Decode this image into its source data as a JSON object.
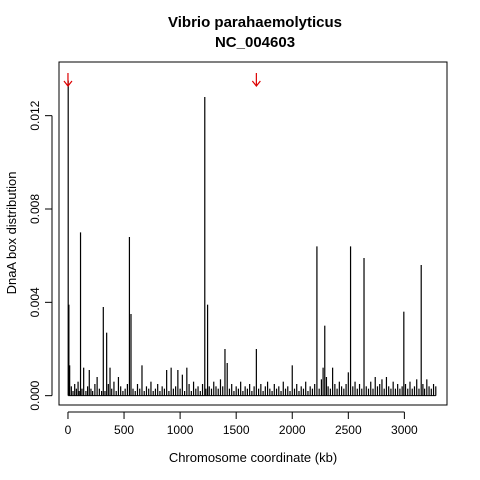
{
  "chart_data": {
    "type": "bar",
    "title": "Vibrio parahaemolyticus",
    "subtitle": "NC_004603",
    "xlabel": "Chromosome coordinate (kb)",
    "ylabel": "DnaA box distribution",
    "xlim": [
      -80,
      3380
    ],
    "ylim": [
      -0.0004,
      0.0143
    ],
    "xticks": [
      0,
      500,
      1000,
      1500,
      2000,
      2500,
      3000
    ],
    "xtick_labels": [
      "0",
      "500",
      "1000",
      "1500",
      "2000",
      "2500",
      "3000"
    ],
    "yticks": [
      0.0,
      0.004,
      0.008,
      0.012
    ],
    "ytick_labels": [
      "0.000",
      "0.004",
      "0.008",
      "0.012"
    ],
    "grid": false,
    "bar_color": "#000000",
    "marker_color": "#dd0000",
    "markers": [
      {
        "x": 0,
        "symbol": "down-arrow"
      },
      {
        "x": 1680,
        "symbol": "down-arrow"
      }
    ],
    "x": [
      2,
      8,
      15,
      30,
      45,
      60,
      75,
      90,
      100,
      112,
      125,
      140,
      160,
      175,
      190,
      205,
      220,
      240,
      260,
      280,
      300,
      315,
      330,
      345,
      360,
      375,
      390,
      410,
      430,
      450,
      470,
      490,
      510,
      530,
      548,
      562,
      580,
      600,
      620,
      640,
      660,
      680,
      700,
      720,
      740,
      760,
      780,
      800,
      820,
      840,
      860,
      880,
      900,
      920,
      940,
      960,
      980,
      1000,
      1020,
      1040,
      1060,
      1080,
      1100,
      1120,
      1140,
      1160,
      1180,
      1200,
      1220,
      1230,
      1245,
      1260,
      1280,
      1300,
      1320,
      1340,
      1360,
      1380,
      1400,
      1420,
      1440,
      1460,
      1480,
      1500,
      1520,
      1540,
      1560,
      1580,
      1600,
      1620,
      1640,
      1660,
      1680,
      1700,
      1720,
      1740,
      1760,
      1780,
      1800,
      1820,
      1840,
      1860,
      1880,
      1900,
      1920,
      1940,
      1960,
      1980,
      2000,
      2020,
      2040,
      2060,
      2080,
      2100,
      2120,
      2140,
      2160,
      2180,
      2200,
      2220,
      2240,
      2260,
      2275,
      2290,
      2305,
      2320,
      2340,
      2360,
      2380,
      2400,
      2420,
      2440,
      2460,
      2480,
      2500,
      2520,
      2540,
      2560,
      2580,
      2600,
      2620,
      2640,
      2660,
      2680,
      2700,
      2720,
      2740,
      2760,
      2780,
      2800,
      2820,
      2840,
      2860,
      2880,
      2900,
      2920,
      2940,
      2960,
      2980,
      2995,
      3010,
      3030,
      3050,
      3070,
      3090,
      3110,
      3130,
      3150,
      3165,
      3180,
      3200,
      3220,
      3240,
      3260,
      3280
    ],
    "values": [
      0.0135,
      0.0039,
      0.0013,
      0.0004,
      0.0002,
      0.0005,
      0.0003,
      0.0006,
      0.0002,
      0.007,
      0.0003,
      0.0012,
      0.0002,
      0.0004,
      0.0011,
      0.0003,
      0.0002,
      0.0005,
      0.0008,
      0.0003,
      0.0002,
      0.0038,
      0.0002,
      0.0027,
      0.0005,
      0.0012,
      0.0003,
      0.0006,
      0.0002,
      0.0008,
      0.0004,
      0.0002,
      0.0003,
      0.0005,
      0.0068,
      0.0035,
      0.0003,
      0.0002,
      0.0005,
      0.0003,
      0.0013,
      0.0002,
      0.0004,
      0.0003,
      0.0006,
      0.0002,
      0.0003,
      0.0005,
      0.0002,
      0.0004,
      0.0003,
      0.0011,
      0.0002,
      0.0012,
      0.0003,
      0.0004,
      0.0011,
      0.0003,
      0.0009,
      0.0002,
      0.0012,
      0.0005,
      0.0002,
      0.0006,
      0.0003,
      0.0004,
      0.0002,
      0.0005,
      0.0128,
      0.0003,
      0.0039,
      0.0004,
      0.0003,
      0.0006,
      0.0004,
      0.0003,
      0.0007,
      0.0004,
      0.002,
      0.0014,
      0.0003,
      0.0005,
      0.0002,
      0.0004,
      0.0003,
      0.0006,
      0.0002,
      0.0004,
      0.0003,
      0.0005,
      0.0002,
      0.0004,
      0.002,
      0.0003,
      0.0005,
      0.0002,
      0.0004,
      0.0006,
      0.0003,
      0.0002,
      0.0005,
      0.0003,
      0.0004,
      0.0002,
      0.0006,
      0.0003,
      0.0004,
      0.0002,
      0.0013,
      0.0003,
      0.0005,
      0.0002,
      0.0004,
      0.0003,
      0.0006,
      0.0002,
      0.0004,
      0.0003,
      0.0005,
      0.0064,
      0.0003,
      0.0007,
      0.0012,
      0.003,
      0.0008,
      0.0004,
      0.0003,
      0.0012,
      0.0005,
      0.0003,
      0.0006,
      0.0004,
      0.0003,
      0.0005,
      0.001,
      0.0064,
      0.0004,
      0.0006,
      0.0003,
      0.0005,
      0.0003,
      0.0059,
      0.0004,
      0.0003,
      0.0006,
      0.0003,
      0.0008,
      0.0004,
      0.0005,
      0.0007,
      0.0003,
      0.0008,
      0.0004,
      0.0003,
      0.0006,
      0.0003,
      0.0005,
      0.0003,
      0.0004,
      0.0036,
      0.0005,
      0.0003,
      0.0006,
      0.0003,
      0.0004,
      0.0007,
      0.0003,
      0.0056,
      0.0005,
      0.0003,
      0.0007,
      0.0004,
      0.0003,
      0.0005,
      0.0004
    ]
  }
}
